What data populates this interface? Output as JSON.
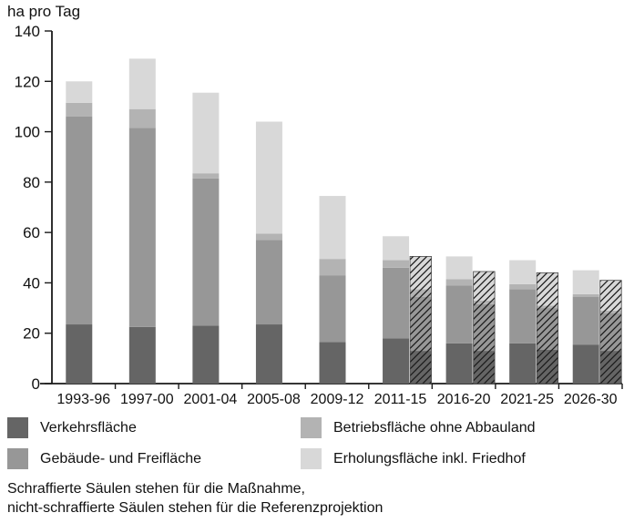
{
  "title": "ha pro Tag",
  "chart_data": {
    "type": "bar",
    "stacked": true,
    "title": "ha pro Tag",
    "ylabel": "ha pro Tag",
    "xlabel": "",
    "ylim": [
      0,
      140
    ],
    "yticks": [
      0,
      20,
      40,
      60,
      80,
      100,
      120,
      140
    ],
    "grid": false,
    "legend_position": "bottom",
    "categories": [
      "1993-96",
      "1997-00",
      "2001-04",
      "2005-08",
      "2009-12",
      "2011-15",
      "2016-20",
      "2021-25",
      "2026-30"
    ],
    "segments": [
      {
        "name": "Verkehrsfläche",
        "color": "#656565"
      },
      {
        "name": "Gebäude- und Freifläche",
        "color": "#979797"
      },
      {
        "name": "Betriebsfläche ohne Abbauland",
        "color": "#b3b3b3"
      },
      {
        "name": "Erholungsfläche inkl. Friedhof",
        "color": "#d8d8d8"
      }
    ],
    "scenarios": {
      "hatched_meaning": "Maßnahme",
      "solid_meaning": "Referenzprojektion"
    },
    "axis_color": "#1a1a1a",
    "hatch_color": "#1c1c1c",
    "bars": [
      {
        "category": "1993-96",
        "reference": [
          23.5,
          82.5,
          5.5,
          8.5
        ],
        "massnahme": null
      },
      {
        "category": "1997-00",
        "reference": [
          22.5,
          79.0,
          7.5,
          20.0
        ],
        "massnahme": null
      },
      {
        "category": "2001-04",
        "reference": [
          23.0,
          58.5,
          2.0,
          32.0
        ],
        "massnahme": null
      },
      {
        "category": "2005-08",
        "reference": [
          23.5,
          33.5,
          2.5,
          44.5
        ],
        "massnahme": null
      },
      {
        "category": "2009-12",
        "reference": [
          16.5,
          26.5,
          6.5,
          25.0
        ],
        "massnahme": null
      },
      {
        "category": "2011-15",
        "reference": [
          18.0,
          28.0,
          3.0,
          9.5
        ],
        "massnahme": [
          13.0,
          21.5,
          3.0,
          13.0
        ]
      },
      {
        "category": "2016-20",
        "reference": [
          16.0,
          23.0,
          2.5,
          9.0
        ],
        "massnahme": [
          13.0,
          18.5,
          1.5,
          11.5
        ]
      },
      {
        "category": "2021-25",
        "reference": [
          16.0,
          21.5,
          2.0,
          9.5
        ],
        "massnahme": [
          13.5,
          16.5,
          1.0,
          13.0
        ]
      },
      {
        "category": "2026-30",
        "reference": [
          15.5,
          19.0,
          1.0,
          9.5
        ],
        "massnahme": [
          13.0,
          15.0,
          1.0,
          12.0
        ]
      }
    ]
  },
  "legend": {
    "items": [
      {
        "label": "Verkehrsfläche",
        "color": "#656565"
      },
      {
        "label": "Gebäude- und Freifläche",
        "color": "#979797"
      },
      {
        "label": "Betriebsfläche ohne Abbauland",
        "color": "#b3b3b3"
      },
      {
        "label": "Erholungsfläche inkl. Friedhof",
        "color": "#d8d8d8"
      }
    ]
  },
  "footnote": {
    "line1": "Schraffierte Säulen stehen für die Maßnahme,",
    "line2": "nicht-schraffierte Säulen stehen für die Referenzprojektion"
  }
}
